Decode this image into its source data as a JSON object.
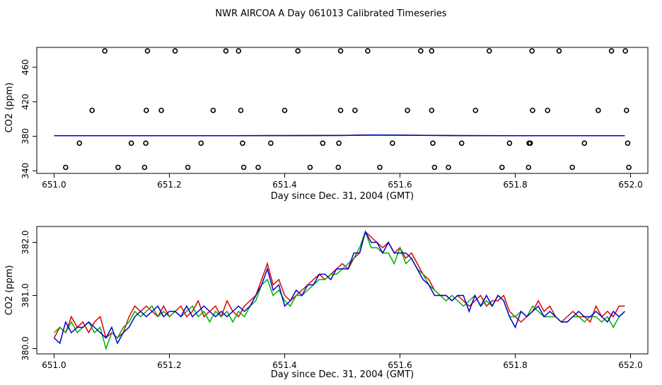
{
  "title": "NWR AIRCOA A  Day 061013  Calibrated Timeseries",
  "colors": {
    "red": "#e00000",
    "green": "#00b000",
    "blue": "#0000d0",
    "axis": "#000000"
  },
  "chart_data": [
    {
      "type": "scatter",
      "title": "",
      "xlabel": "Day since Dec. 31, 2004 (GMT)",
      "ylabel": "CO2 (ppm)",
      "xlim": [
        650.97,
        652.03
      ],
      "ylim": [
        337,
        483
      ],
      "xticks": [
        651.0,
        651.2,
        651.4,
        651.6,
        651.8,
        652.0
      ],
      "xtick_labels": [
        "651.0",
        "651.2",
        "651.4",
        "651.6",
        "651.8",
        "652.0"
      ],
      "yticks": [
        340,
        380,
        420,
        460
      ],
      "ytick_labels": [
        "340",
        "380",
        "420",
        "460"
      ],
      "points": {
        "x": [
          651.088,
          651.162,
          651.21,
          651.298,
          651.32,
          651.423,
          651.497,
          651.544,
          651.636,
          651.655,
          651.755,
          651.829,
          651.876,
          651.967,
          651.991,
          651.066,
          651.16,
          651.186,
          651.276,
          651.324,
          651.4,
          651.497,
          651.522,
          651.613,
          651.655,
          651.731,
          651.83,
          651.856,
          651.944,
          651.993,
          651.044,
          651.134,
          651.159,
          651.255,
          651.327,
          651.376,
          651.466,
          651.494,
          651.587,
          651.657,
          651.707,
          651.79,
          651.824,
          651.826,
          651.92,
          651.995,
          651.02,
          651.111,
          651.157,
          651.232,
          651.329,
          651.354,
          651.444,
          651.493,
          651.565,
          651.66,
          651.684,
          651.777,
          651.823,
          651.899,
          651.997
        ],
        "y": [
          479,
          479,
          479,
          479,
          479,
          479,
          479,
          479,
          479,
          479,
          479,
          479,
          479,
          479,
          479,
          410,
          410,
          410,
          410,
          410,
          410,
          410,
          410,
          410,
          410,
          410,
          410,
          410,
          410,
          410,
          372,
          372,
          372,
          372,
          372,
          372,
          372,
          372,
          372,
          372,
          372,
          372,
          372,
          372,
          372,
          372,
          344,
          344,
          344,
          344,
          344,
          344,
          344,
          344,
          344,
          344,
          344,
          344,
          344,
          344,
          344
        ]
      },
      "series": [
        {
          "name": "red",
          "x": [
            651.0,
            651.1,
            651.2,
            651.3,
            651.4,
            651.5,
            651.55,
            651.6,
            651.7,
            651.8,
            651.9,
            651.99
          ],
          "values": [
            380.6,
            380.6,
            380.7,
            380.7,
            380.8,
            381.0,
            381.5,
            381.3,
            380.8,
            380.6,
            380.6,
            380.6
          ]
        },
        {
          "name": "green",
          "x": [
            651.0,
            651.1,
            651.2,
            651.3,
            651.4,
            651.5,
            651.55,
            651.6,
            651.7,
            651.8,
            651.9,
            651.99
          ],
          "values": [
            380.6,
            380.6,
            380.7,
            380.7,
            380.8,
            381.0,
            381.5,
            381.3,
            380.8,
            380.6,
            380.6,
            380.6
          ]
        },
        {
          "name": "blue",
          "x": [
            651.0,
            651.1,
            651.2,
            651.3,
            651.4,
            651.5,
            651.55,
            651.6,
            651.7,
            651.8,
            651.9,
            651.99
          ],
          "values": [
            380.6,
            380.6,
            380.7,
            380.7,
            380.8,
            381.0,
            381.5,
            381.3,
            380.8,
            380.6,
            380.6,
            380.6
          ]
        }
      ]
    },
    {
      "type": "line",
      "title": "",
      "xlabel": "Day since Dec. 31, 2004 (GMT)",
      "ylabel": "CO2 (ppm)",
      "xlim": [
        650.97,
        652.03
      ],
      "ylim": [
        379.9,
        382.3
      ],
      "xticks": [
        651.0,
        651.2,
        651.4,
        651.6,
        651.8,
        652.0
      ],
      "xtick_labels": [
        "651.0",
        "651.2",
        "651.4",
        "651.6",
        "651.8",
        "652.0"
      ],
      "yticks": [
        380.0,
        381.0,
        382.0
      ],
      "ytick_labels": [
        "380.0",
        "381.0",
        "382.0"
      ],
      "series": [
        {
          "name": "red",
          "x": [
            651.0,
            651.01,
            651.02,
            651.03,
            651.04,
            651.05,
            651.06,
            651.07,
            651.08,
            651.09,
            651.1,
            651.11,
            651.12,
            651.13,
            651.14,
            651.15,
            651.16,
            651.17,
            651.18,
            651.19,
            651.2,
            651.21,
            651.22,
            651.23,
            651.24,
            651.25,
            651.26,
            651.27,
            651.28,
            651.29,
            651.3,
            651.31,
            651.32,
            651.33,
            651.34,
            651.35,
            651.36,
            651.37,
            651.38,
            651.39,
            651.4,
            651.41,
            651.42,
            651.43,
            651.44,
            651.45,
            651.46,
            651.47,
            651.48,
            651.49,
            651.5,
            651.51,
            651.52,
            651.53,
            651.54,
            651.55,
            651.56,
            651.57,
            651.58,
            651.59,
            651.6,
            651.61,
            651.62,
            651.63,
            651.64,
            651.65,
            651.66,
            651.67,
            651.68,
            651.69,
            651.7,
            651.71,
            651.72,
            651.73,
            651.74,
            651.75,
            651.76,
            651.77,
            651.78,
            651.79,
            651.8,
            651.81,
            651.82,
            651.83,
            651.84,
            651.85,
            651.86,
            651.87,
            651.88,
            651.89,
            651.9,
            651.91,
            651.92,
            651.93,
            651.94,
            651.95,
            651.96,
            651.97,
            651.98,
            651.99
          ],
          "values": [
            380.2,
            380.4,
            380.3,
            380.6,
            380.4,
            380.5,
            380.3,
            380.5,
            380.6,
            380.2,
            380.3,
            380.2,
            380.3,
            380.6,
            380.8,
            380.7,
            380.8,
            380.7,
            380.6,
            380.8,
            380.6,
            380.7,
            380.8,
            380.6,
            380.7,
            380.9,
            380.6,
            380.7,
            380.8,
            380.6,
            380.9,
            380.7,
            380.6,
            380.8,
            380.9,
            381.0,
            381.3,
            381.6,
            381.2,
            381.3,
            381.0,
            380.9,
            381.0,
            381.1,
            381.2,
            381.3,
            381.4,
            381.3,
            381.4,
            381.5,
            381.6,
            381.5,
            381.7,
            381.8,
            382.2,
            382.1,
            382.0,
            381.9,
            382.0,
            381.8,
            381.9,
            381.7,
            381.8,
            381.6,
            381.4,
            381.3,
            381.1,
            381.0,
            381.0,
            380.9,
            381.0,
            380.9,
            380.8,
            380.9,
            381.0,
            380.8,
            380.9,
            380.9,
            381.0,
            380.7,
            380.6,
            380.5,
            380.6,
            380.7,
            380.9,
            380.7,
            380.8,
            380.6,
            380.5,
            380.6,
            380.7,
            380.6,
            380.6,
            380.5,
            380.8,
            380.6,
            380.7,
            380.6,
            380.8,
            380.8
          ]
        },
        {
          "name": "green",
          "x": [
            651.0,
            651.01,
            651.02,
            651.03,
            651.04,
            651.05,
            651.06,
            651.07,
            651.08,
            651.09,
            651.1,
            651.11,
            651.12,
            651.13,
            651.14,
            651.15,
            651.16,
            651.17,
            651.18,
            651.19,
            651.2,
            651.21,
            651.22,
            651.23,
            651.24,
            651.25,
            651.26,
            651.27,
            651.28,
            651.29,
            651.3,
            651.31,
            651.32,
            651.33,
            651.34,
            651.35,
            651.36,
            651.37,
            651.38,
            651.39,
            651.4,
            651.41,
            651.42,
            651.43,
            651.44,
            651.45,
            651.46,
            651.47,
            651.48,
            651.49,
            651.5,
            651.51,
            651.52,
            651.53,
            651.54,
            651.55,
            651.56,
            651.57,
            651.58,
            651.59,
            651.6,
            651.61,
            651.62,
            651.63,
            651.64,
            651.65,
            651.66,
            651.67,
            651.68,
            651.69,
            651.7,
            651.71,
            651.72,
            651.73,
            651.74,
            651.75,
            651.76,
            651.77,
            651.78,
            651.79,
            651.8,
            651.81,
            651.82,
            651.83,
            651.84,
            651.85,
            651.86,
            651.87,
            651.88,
            651.89,
            651.9,
            651.91,
            651.92,
            651.93,
            651.94,
            651.95,
            651.96,
            651.97,
            651.98,
            651.99
          ],
          "values": [
            380.3,
            380.4,
            380.3,
            380.5,
            380.3,
            380.4,
            380.5,
            380.3,
            380.4,
            380.0,
            380.3,
            380.2,
            380.4,
            380.5,
            380.7,
            380.6,
            380.7,
            380.8,
            380.6,
            380.7,
            380.6,
            380.7,
            380.6,
            380.7,
            380.8,
            380.6,
            380.7,
            380.5,
            380.7,
            380.6,
            380.7,
            380.5,
            380.7,
            380.6,
            380.8,
            380.9,
            381.2,
            381.3,
            381.0,
            381.1,
            380.9,
            380.8,
            381.0,
            381.0,
            381.1,
            381.2,
            381.3,
            381.3,
            381.4,
            381.4,
            381.5,
            381.6,
            381.7,
            381.9,
            382.2,
            381.9,
            381.9,
            381.8,
            381.8,
            381.6,
            381.9,
            381.6,
            381.7,
            381.5,
            381.4,
            381.2,
            381.1,
            381.0,
            380.9,
            381.0,
            380.9,
            380.8,
            380.9,
            381.0,
            380.8,
            380.9,
            380.8,
            381.0,
            380.9,
            380.6,
            380.6,
            380.7,
            380.6,
            380.8,
            380.7,
            380.6,
            380.6,
            380.6,
            380.5,
            380.5,
            380.6,
            380.6,
            380.5,
            380.6,
            380.6,
            380.5,
            380.6,
            380.4,
            380.6,
            380.7
          ]
        },
        {
          "name": "blue",
          "x": [
            651.0,
            651.01,
            651.02,
            651.03,
            651.04,
            651.05,
            651.06,
            651.07,
            651.08,
            651.09,
            651.1,
            651.11,
            651.12,
            651.13,
            651.14,
            651.15,
            651.16,
            651.17,
            651.18,
            651.19,
            651.2,
            651.21,
            651.22,
            651.23,
            651.24,
            651.25,
            651.26,
            651.27,
            651.28,
            651.29,
            651.3,
            651.31,
            651.32,
            651.33,
            651.34,
            651.35,
            651.36,
            651.37,
            651.38,
            651.39,
            651.4,
            651.41,
            651.42,
            651.43,
            651.44,
            651.45,
            651.46,
            651.47,
            651.48,
            651.49,
            651.5,
            651.51,
            651.52,
            651.53,
            651.54,
            651.55,
            651.56,
            651.57,
            651.58,
            651.59,
            651.6,
            651.61,
            651.62,
            651.63,
            651.64,
            651.65,
            651.66,
            651.67,
            651.68,
            651.69,
            651.7,
            651.71,
            651.72,
            651.73,
            651.74,
            651.75,
            651.76,
            651.77,
            651.78,
            651.79,
            651.8,
            651.81,
            651.82,
            651.83,
            651.84,
            651.85,
            651.86,
            651.87,
            651.88,
            651.89,
            651.9,
            651.91,
            651.92,
            651.93,
            651.94,
            651.95,
            651.96,
            651.97,
            651.98,
            651.99
          ],
          "values": [
            380.2,
            380.1,
            380.5,
            380.3,
            380.4,
            380.4,
            380.5,
            380.4,
            380.3,
            380.2,
            380.4,
            380.1,
            380.3,
            380.4,
            380.6,
            380.7,
            380.6,
            380.7,
            380.8,
            380.6,
            380.7,
            380.7,
            380.6,
            380.8,
            380.6,
            380.7,
            380.8,
            380.7,
            380.6,
            380.7,
            380.6,
            380.7,
            380.8,
            380.7,
            380.8,
            381.0,
            381.2,
            381.5,
            381.1,
            381.2,
            380.8,
            380.9,
            381.1,
            381.0,
            381.2,
            381.2,
            381.4,
            381.4,
            381.3,
            381.5,
            381.5,
            381.5,
            381.8,
            381.8,
            382.2,
            382.0,
            382.0,
            381.8,
            382.0,
            381.8,
            381.8,
            381.8,
            381.7,
            381.5,
            381.3,
            381.2,
            381.0,
            381.0,
            381.0,
            380.9,
            381.0,
            381.0,
            380.7,
            381.0,
            380.8,
            381.0,
            380.8,
            381.0,
            380.9,
            380.6,
            380.4,
            380.7,
            380.6,
            380.7,
            380.8,
            380.6,
            380.7,
            380.6,
            380.5,
            380.5,
            380.6,
            380.7,
            380.6,
            380.6,
            380.7,
            380.6,
            380.5,
            380.7,
            380.6,
            380.7
          ]
        }
      ]
    }
  ]
}
